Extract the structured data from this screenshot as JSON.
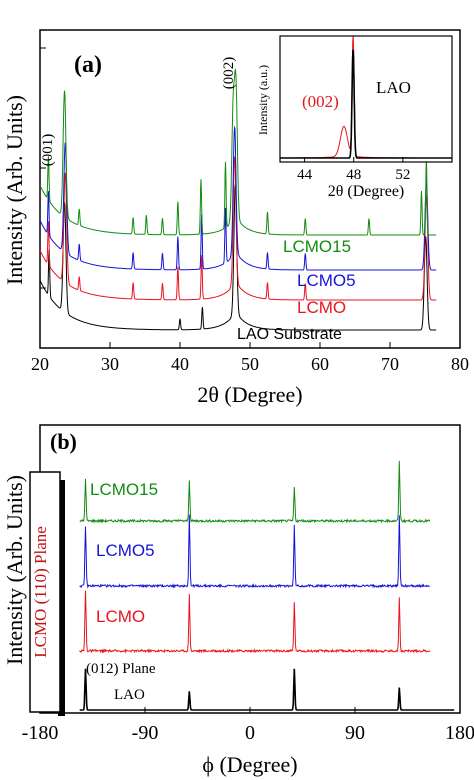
{
  "colors": {
    "black": "#000000",
    "red": "#e8141e",
    "blue": "#1414d8",
    "green": "#128c12",
    "lcmo_box": "#c01414"
  },
  "chart_data": [
    {
      "type": "line",
      "panel_label": "(a)",
      "xlabel": "2θ (Degree)",
      "ylabel": "Intensity (Arb. Units)",
      "xlim": [
        20,
        80
      ],
      "xticks": [
        "20",
        "30",
        "40",
        "50",
        "60",
        "70",
        "80"
      ],
      "y_scale": "log",
      "grid": false,
      "peak_labels": [
        "(001)",
        "(002)"
      ],
      "series": [
        {
          "name": "LAO Substrate",
          "color": "#000000",
          "label_text": "LAO Substrate",
          "peaks": [
            [
              21.3,
              0.85
            ],
            [
              23.5,
              2.0
            ],
            [
              40.0,
              0.2
            ],
            [
              43.2,
              0.4
            ],
            [
              47.9,
              2.3
            ],
            [
              75.1,
              1.7
            ]
          ]
        },
        {
          "name": "LCMO",
          "color": "#e8141e",
          "label_text": "LCMO",
          "peaks": [
            [
              21.2,
              0.8
            ],
            [
              23.6,
              2.0
            ],
            [
              25.6,
              0.25
            ],
            [
              33.3,
              0.3
            ],
            [
              37.5,
              0.3
            ],
            [
              39.7,
              0.6
            ],
            [
              43.1,
              0.8
            ],
            [
              47.8,
              2.3
            ],
            [
              52.5,
              0.3
            ],
            [
              57.9,
              0.3
            ],
            [
              75.2,
              1.9
            ]
          ]
        },
        {
          "name": "LCMO5",
          "color": "#1414d8",
          "label_text": "LCMO5",
          "peaks": [
            [
              21.2,
              0.8
            ],
            [
              23.6,
              2.0
            ],
            [
              25.6,
              0.3
            ],
            [
              33.3,
              0.3
            ],
            [
              37.5,
              0.3
            ],
            [
              39.7,
              0.6
            ],
            [
              43.1,
              1.0
            ],
            [
              46.5,
              1.0
            ],
            [
              47.8,
              2.3
            ],
            [
              52.5,
              0.3
            ],
            [
              57.9,
              0.3
            ],
            [
              75.2,
              1.6
            ]
          ]
        },
        {
          "name": "LCMO15",
          "color": "#128c12",
          "label_text": "LCMO15",
          "peaks": [
            [
              21.2,
              0.8
            ],
            [
              23.5,
              2.3
            ],
            [
              25.6,
              0.3
            ],
            [
              33.3,
              0.3
            ],
            [
              35.2,
              0.35
            ],
            [
              37.5,
              0.3
            ],
            [
              39.7,
              0.6
            ],
            [
              43.0,
              1.0
            ],
            [
              46.5,
              1.2
            ],
            [
              47.6,
              2.0
            ],
            [
              48.0,
              2.3
            ],
            [
              52.5,
              0.4
            ],
            [
              57.9,
              0.3
            ],
            [
              67.0,
              0.3
            ],
            [
              74.5,
              0.8
            ],
            [
              75.2,
              1.4
            ]
          ]
        }
      ],
      "inset": {
        "xlabel": "2θ (Degree)",
        "ylabel": "Intensity (a.u.)",
        "xlim": [
          42,
          56
        ],
        "xticks": [
          "44",
          "48",
          "52"
        ],
        "annotations": [
          "(002)",
          "LAO"
        ],
        "series": [
          {
            "name": "LCMO (002)",
            "color": "#e8141e",
            "peaks": [
              [
                47.2,
                0.25
              ],
              [
                47.95,
                1.0
              ]
            ]
          },
          {
            "name": "LAO",
            "color": "#000000",
            "peaks": [
              [
                47.95,
                0.9
              ]
            ]
          }
        ]
      }
    },
    {
      "type": "line",
      "panel_label": "(b)",
      "xlabel": "ϕ (Degree)",
      "ylabel": "Intensity (Arb. Units)",
      "xlim": [
        -180,
        180
      ],
      "xticks": [
        "-180",
        "-90",
        "0",
        "90",
        "180"
      ],
      "grid": false,
      "side_label": "LCMO (110) Plane",
      "lao_labels": [
        "(012) Plane",
        "LAO"
      ],
      "series": [
        {
          "name": "LCMO15",
          "color": "#128c12",
          "label_text": "LCMO15",
          "peaks": [
            [
              -141,
              0.55
            ],
            [
              -52,
              0.55
            ],
            [
              38,
              0.45
            ],
            [
              128,
              0.8
            ]
          ]
        },
        {
          "name": "LCMO5",
          "color": "#1414d8",
          "label_text": "LCMO5",
          "peaks": [
            [
              -141,
              0.8
            ],
            [
              -52,
              0.95
            ],
            [
              38,
              0.8
            ],
            [
              128,
              0.95
            ]
          ]
        },
        {
          "name": "LCMO",
          "color": "#e8141e",
          "label_text": "LCMO",
          "peaks": [
            [
              -141,
              0.8
            ],
            [
              -52,
              0.75
            ],
            [
              38,
              0.65
            ],
            [
              128,
              0.7
            ]
          ]
        },
        {
          "name": "LAO",
          "color": "#000000",
          "label_text": "LAO",
          "peaks": [
            [
              -141,
              0.55
            ],
            [
              -52,
              0.25
            ],
            [
              38,
              0.55
            ],
            [
              128,
              0.3
            ]
          ]
        }
      ]
    }
  ]
}
